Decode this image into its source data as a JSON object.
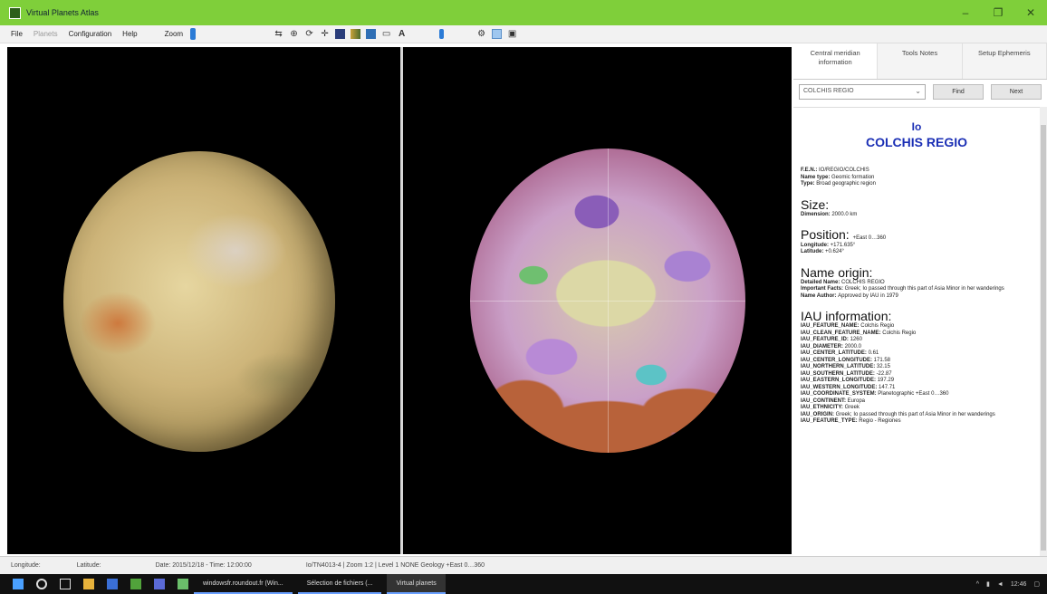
{
  "window": {
    "title": "Virtual Planets Atlas",
    "controls": [
      "–",
      "❐",
      "✕"
    ]
  },
  "menu": {
    "items": [
      "File",
      "Planets",
      "Configuration",
      "Help"
    ],
    "zoom_label": "Zoom"
  },
  "toolbar": {
    "text_tool": "A"
  },
  "tabs": [
    {
      "label": "Central meridian information"
    },
    {
      "label": "Tools Notes"
    },
    {
      "label": "Setup Ephemeris"
    }
  ],
  "search": {
    "value": "COLCHIS REGIO",
    "find_label": "Find",
    "next_label": "Next"
  },
  "info": {
    "body": "Io",
    "name": "COLCHIS REGIO",
    "lines_top": [
      {
        "k": "F.E.N.:",
        "v": "IO/REGIO/COLCHIS"
      },
      {
        "k": "Name type:",
        "v": "Geomic formation"
      },
      {
        "k": "Type:",
        "v": "Broad geographic region"
      }
    ],
    "size_title": "Size:",
    "size_lines": [
      {
        "k": "Dimension:",
        "v": "2000.0 km"
      }
    ],
    "position_title": "Position:",
    "position_value": "+East 0…360",
    "position_lines": [
      {
        "k": "Longitude:",
        "v": "+171.635°"
      },
      {
        "k": "Latitude:",
        "v": "+0.624°"
      }
    ],
    "origin_title": "Name origin:",
    "origin_lines": [
      {
        "k": "Detailed Name:",
        "v": "COLCHIS REGIO"
      },
      {
        "k": "Important Facts:",
        "v": "Greek; Io passed through this part of Asia Minor in her wanderings"
      },
      {
        "k": "Name Author:",
        "v": "Approved by IAU in 1979"
      }
    ],
    "iau_title": "IAU information:",
    "iau_lines": [
      {
        "k": "IAU_FEATURE_NAME:",
        "v": "Colchis Regio"
      },
      {
        "k": "IAU_CLEAN_FEATURE_NAME:",
        "v": "Colchis Regio"
      },
      {
        "k": "IAU_FEATURE_ID:",
        "v": "1260"
      },
      {
        "k": "IAU_DIAMETER:",
        "v": "2000.0"
      },
      {
        "k": "IAU_CENTER_LATITUDE:",
        "v": "0.61"
      },
      {
        "k": "IAU_CENTER_LONGITUDE:",
        "v": "171.58"
      },
      {
        "k": "IAU_NORTHERN_LATITUDE:",
        "v": "32.15"
      },
      {
        "k": "IAU_SOUTHERN_LATITUDE:",
        "v": "-22.87"
      },
      {
        "k": "IAU_EASTERN_LONGITUDE:",
        "v": "197.29"
      },
      {
        "k": "IAU_WESTERN_LONGITUDE:",
        "v": "147.71"
      },
      {
        "k": "IAU_COORDINATE_SYSTEM:",
        "v": "Planetographic +East 0…360"
      },
      {
        "k": "IAU_CONTINENT:",
        "v": "Europa"
      },
      {
        "k": "IAU_ETHNICITY:",
        "v": "Greek"
      },
      {
        "k": "IAU_ORIGIN:",
        "v": "Greek; Io passed through this part of Asia Minor in her wanderings"
      },
      {
        "k": "IAU_FEATURE_TYPE:",
        "v": "Regio - Regiones"
      }
    ]
  },
  "status": {
    "longitude": "Longitude:",
    "latitude": "Latitude:",
    "datetime": "Date: 2015/12/18 - Time: 12:00:00",
    "details": "Io/TN4013-4 | Zoom 1:2 | Level 1 NONE Geology +East 0…360"
  },
  "taskbar": {
    "tasks": [
      {
        "label": "windowsfr.roundout.fr (Win...",
        "active": false
      },
      {
        "label": "Sélection de fichiers (...",
        "active": false
      },
      {
        "label": "Virtual planets",
        "active": true
      }
    ],
    "time": "12:46"
  }
}
